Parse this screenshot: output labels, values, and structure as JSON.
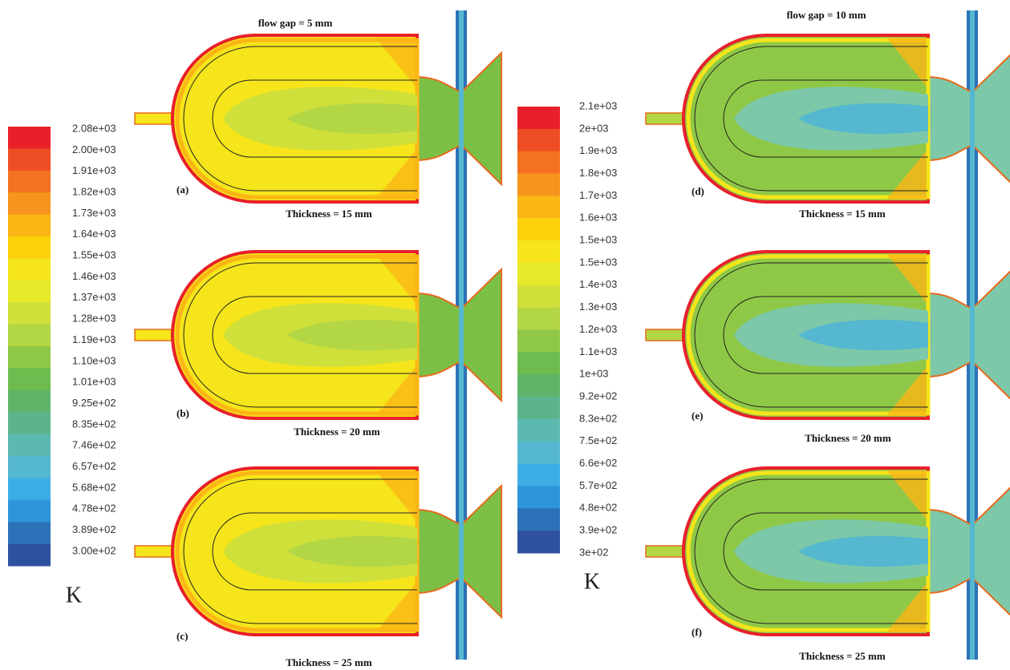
{
  "left": {
    "title": "flow gap = 5 mm",
    "colorbar": [
      "2.08e+03",
      "2.00e+03",
      "1.91e+03",
      "1.82e+03",
      "1.73e+03",
      "1.64e+03",
      "1.55e+03",
      "1.46e+03",
      "1.37e+03",
      "1.28e+03",
      "1.19e+03",
      "1.10e+03",
      "1.01e+03",
      "9.25e+02",
      "8.35e+02",
      "7.46e+02",
      "6.57e+02",
      "5.68e+02",
      "4.78e+02",
      "3.89e+02",
      "3.00e+02"
    ],
    "unit": "K",
    "panels": [
      {
        "label": "(a)",
        "caption": "Thickness = 15 mm"
      },
      {
        "label": "(b)",
        "caption": "Thickness = 20 mm"
      },
      {
        "label": "(c)",
        "caption": "Thickness = 25 mm"
      }
    ]
  },
  "right": {
    "title": "flow gap = 10 mm",
    "colorbar": [
      "2.1e+03",
      "2e+03",
      "1.9e+03",
      "1.8e+03",
      "1.7e+03",
      "1.6e+03",
      "1.5e+03",
      "1.5e+03",
      "1.4e+03",
      "1.3e+03",
      "1.2e+03",
      "1.1e+03",
      "1e+03",
      "9.2e+02",
      "8.3e+02",
      "7.5e+02",
      "6.6e+02",
      "5.7e+02",
      "4.8e+02",
      "3.9e+02",
      "3e+02"
    ],
    "unit": "K",
    "panels": [
      {
        "label": "(d)",
        "caption": "Thickness = 15 mm"
      },
      {
        "label": "(e)",
        "caption": "Thickness = 20 mm"
      },
      {
        "label": "(f)",
        "caption": "Thickness = 25 mm"
      }
    ]
  }
}
